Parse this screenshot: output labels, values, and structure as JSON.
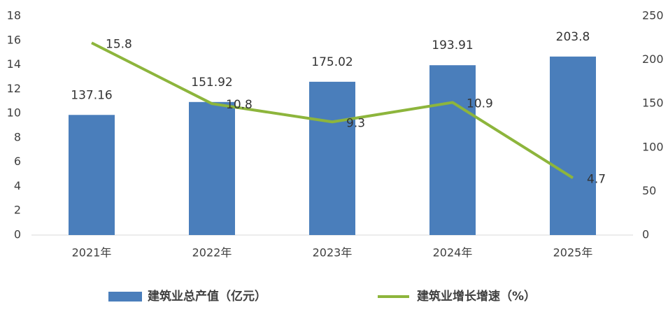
{
  "chart_data": {
    "type": "bar",
    "categories": [
      "2021年",
      "2022年",
      "2023年",
      "2024年",
      "2025年"
    ],
    "series": [
      {
        "name": "建筑业总产值（亿元）",
        "type": "bar",
        "axis": "y2",
        "color": "#4a7ebb",
        "values": [
          137.16,
          151.92,
          175.02,
          193.91,
          203.8
        ]
      },
      {
        "name": "建筑业增长增速（%）",
        "type": "line",
        "axis": "y",
        "color": "#8db53c",
        "values": [
          15.8,
          10.8,
          9.3,
          10.9,
          4.7
        ]
      }
    ],
    "ylim": [
      0,
      18
    ],
    "yticks": [
      0,
      2,
      4,
      6,
      8,
      10,
      12,
      14,
      16,
      18
    ],
    "y2lim": [
      0,
      250
    ],
    "y2ticks": [
      0,
      50,
      100,
      150,
      200,
      250
    ],
    "grid": false,
    "legend": "bottom"
  }
}
